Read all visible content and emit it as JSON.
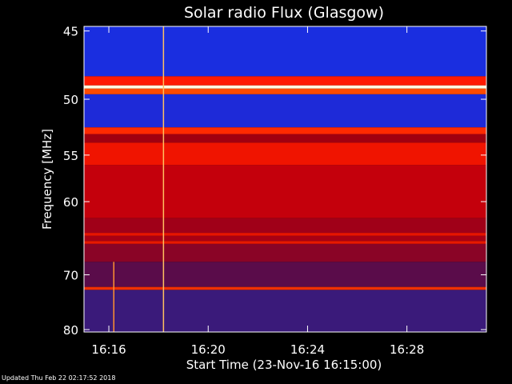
{
  "chart_data": {
    "type": "heatmap",
    "title": "Solar radio Flux (Glasgow)",
    "xlabel": "Start Time (23-Nov-16 16:15:00)",
    "ylabel": "Frequency [MHz]",
    "x_start_minutes": 0,
    "x_end_minutes": 16.2,
    "x_ticks": [
      {
        "label": "16:16",
        "minute": 1
      },
      {
        "label": "16:20",
        "minute": 5
      },
      {
        "label": "16:24",
        "minute": 9
      },
      {
        "label": "16:28",
        "minute": 13
      }
    ],
    "y_ticks": [
      {
        "label": "45",
        "value": 45
      },
      {
        "label": "50",
        "value": 50
      },
      {
        "label": "55",
        "value": 55
      },
      {
        "label": "60",
        "value": 60
      },
      {
        "label": "70",
        "value": 70
      },
      {
        "label": "80",
        "value": 80
      }
    ],
    "y_axis_scale": "reciprocal (frequency decreasing downward, compressed at high MHz)",
    "ylim": [
      44.7,
      80.5
    ],
    "frequency_bands": [
      {
        "from": 44.7,
        "to": 48.2,
        "color": "#1a2ee0"
      },
      {
        "from": 48.2,
        "to": 48.9,
        "color": "#ff1a00"
      },
      {
        "from": 48.9,
        "to": 49.15,
        "color": "#fffbe0"
      },
      {
        "from": 49.15,
        "to": 49.6,
        "color": "#ff4a00"
      },
      {
        "from": 49.6,
        "to": 52.4,
        "color": "#1e2ad8"
      },
      {
        "from": 52.4,
        "to": 53.0,
        "color": "#ff2a00"
      },
      {
        "from": 53.0,
        "to": 53.8,
        "color": "#a00010"
      },
      {
        "from": 53.8,
        "to": 56.0,
        "color": "#f01400"
      },
      {
        "from": 56.0,
        "to": 62.0,
        "color": "#c4000c"
      },
      {
        "from": 62.0,
        "to": 63.9,
        "color": "#a00018"
      },
      {
        "from": 63.9,
        "to": 64.3,
        "color": "#e81400"
      },
      {
        "from": 64.3,
        "to": 65.0,
        "color": "#a80014"
      },
      {
        "from": 65.0,
        "to": 65.4,
        "color": "#e81800"
      },
      {
        "from": 65.4,
        "to": 68.0,
        "color": "#8a0426"
      },
      {
        "from": 68.0,
        "to": 72.0,
        "color": "#5a0c4a"
      },
      {
        "from": 72.0,
        "to": 72.5,
        "color": "#f03000"
      },
      {
        "from": 72.5,
        "to": 80.5,
        "color": "#3a1a7a"
      }
    ],
    "vertical_bursts": [
      {
        "minute": 3.2,
        "from": 44.7,
        "to": 80.5,
        "color": "#ffc060"
      },
      {
        "minute": 1.2,
        "from": 68.0,
        "to": 80.5,
        "color": "#ff9030"
      }
    ],
    "grid": false,
    "colors": {
      "background": "#000000",
      "axis": "#ffffff",
      "text": "#ffffff"
    }
  },
  "footer": {
    "updated_text": "Updated Thu Feb 22 02:17:52 2018"
  }
}
